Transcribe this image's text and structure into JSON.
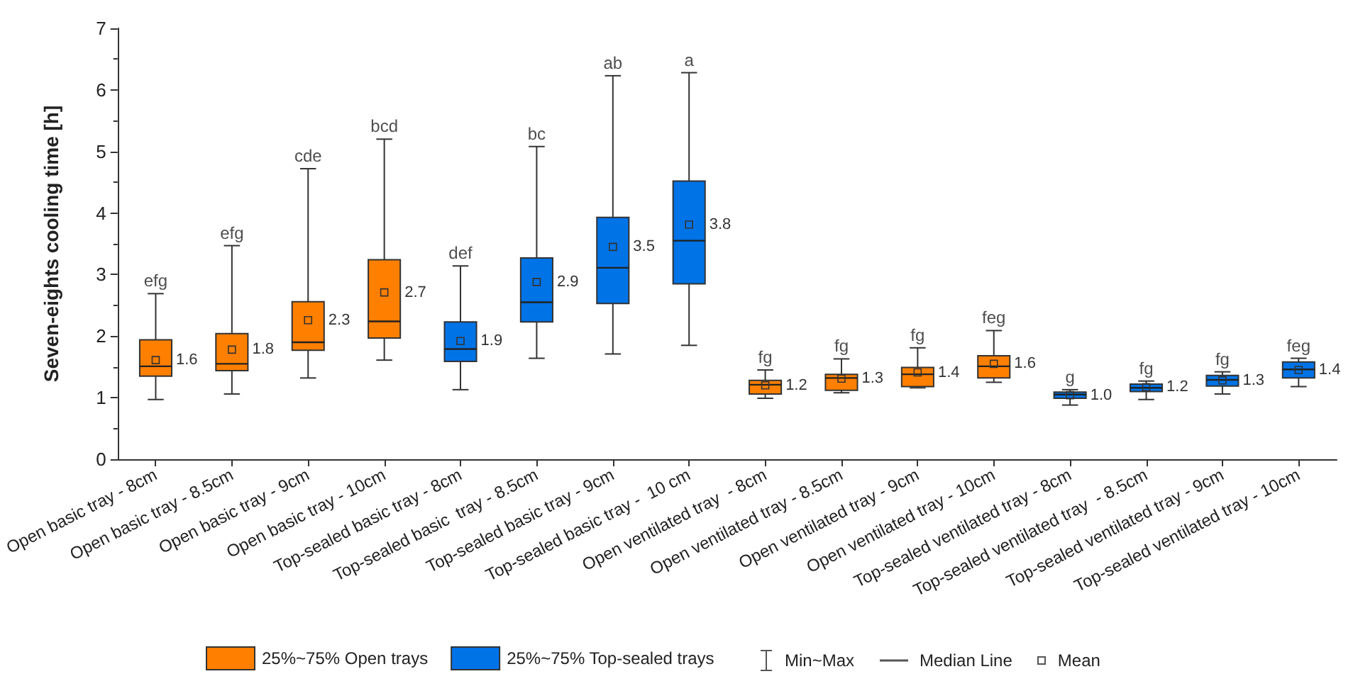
{
  "chart_data": {
    "type": "box",
    "ylabel": "Seven-eights cooling time [h]",
    "categories": [
      "Open basic tray - 8cm",
      "Open basic tray - 8.5cm",
      "Open basic tray - 9cm",
      "Open basic tray - 10cm",
      "Top-sealed basic tray - 8cm",
      "Top-sealed basic  tray - 8.5cm",
      "Top-sealed basic tray - 9cm",
      "Top-sealed basic tray -  10 cm",
      "Open ventilated tray  - 8cm",
      "Open ventilated tray - 8.5cm",
      "Open ventilated tray - 9cm",
      "Open ventilated tray - 10cm",
      "Top-sealed ventilated tray - 8cm",
      "Top-sealed ventilated tray  - 8.5cm",
      "Top-sealed ventilated tray - 9cm",
      "Top-sealed ventilated tray - 10cm"
    ],
    "ylim": [
      0,
      7
    ],
    "yticks": [
      0,
      1,
      2,
      3,
      4,
      5,
      6,
      7
    ],
    "grid": false,
    "legend": "bottom",
    "series": [
      {
        "name": "25%~75% Open trays",
        "color": "#ff7f00",
        "value_labels": [
          "1.6",
          "1.8",
          "2.3",
          "2.7",
          null,
          null,
          null,
          null,
          "1.2",
          "1.3",
          "1.4",
          "1.6",
          null,
          null,
          null,
          null
        ],
        "boxes": [
          {
            "low": 0.97,
            "q1": 1.35,
            "median": 1.51,
            "q3": 1.94,
            "high": 2.69,
            "mean": 1.61
          },
          {
            "low": 1.06,
            "q1": 1.44,
            "median": 1.55,
            "q3": 2.04,
            "high": 3.47,
            "mean": 1.78
          },
          {
            "low": 1.32,
            "q1": 1.77,
            "median": 1.9,
            "q3": 2.56,
            "high": 4.72,
            "mean": 2.26
          },
          {
            "low": 1.61,
            "q1": 1.97,
            "median": 2.24,
            "q3": 3.24,
            "high": 5.2,
            "mean": 2.71
          },
          null,
          null,
          null,
          null,
          {
            "low": 0.99,
            "q1": 1.06,
            "median": 1.21,
            "q3": 1.28,
            "high": 1.45,
            "mean": 1.2
          },
          {
            "low": 1.08,
            "q1": 1.12,
            "median": 1.32,
            "q3": 1.38,
            "high": 1.63,
            "mean": 1.31
          },
          {
            "low": 1.16,
            "q1": 1.18,
            "median": 1.38,
            "q3": 1.49,
            "high": 1.81,
            "mean": 1.41
          },
          {
            "low": 1.25,
            "q1": 1.32,
            "median": 1.51,
            "q3": 1.68,
            "high": 2.09,
            "mean": 1.55
          },
          null,
          null,
          null,
          null
        ]
      },
      {
        "name": "25%~75% Top-sealed trays",
        "color": "#0073e6",
        "value_labels": [
          null,
          null,
          null,
          null,
          "1.9",
          "2.9",
          "3.5",
          "3.8",
          null,
          null,
          null,
          null,
          "1.0",
          "1.2",
          "1.3",
          "1.4"
        ],
        "boxes": [
          null,
          null,
          null,
          null,
          {
            "low": 1.13,
            "q1": 1.59,
            "median": 1.79,
            "q3": 2.23,
            "high": 3.14,
            "mean": 1.92
          },
          {
            "low": 1.64,
            "q1": 2.23,
            "median": 2.55,
            "q3": 3.27,
            "high": 5.08,
            "mean": 2.88
          },
          {
            "low": 1.71,
            "q1": 2.53,
            "median": 3.11,
            "q3": 3.93,
            "high": 6.23,
            "mean": 3.45
          },
          {
            "low": 1.85,
            "q1": 2.85,
            "median": 3.55,
            "q3": 4.52,
            "high": 6.28,
            "mean": 3.81
          },
          null,
          null,
          null,
          null,
          {
            "low": 0.88,
            "q1": 0.99,
            "median": 1.05,
            "q3": 1.09,
            "high": 1.13,
            "mean": 1.04
          },
          {
            "low": 0.97,
            "q1": 1.1,
            "median": 1.16,
            "q3": 1.22,
            "high": 1.27,
            "mean": 1.17
          },
          {
            "low": 1.06,
            "q1": 1.19,
            "median": 1.29,
            "q3": 1.36,
            "high": 1.42,
            "mean": 1.28
          },
          {
            "low": 1.18,
            "q1": 1.32,
            "median": 1.46,
            "q3": 1.58,
            "high": 1.64,
            "mean": 1.45
          }
        ]
      }
    ],
    "annotations": [
      "Min~Max",
      "Median Line",
      "Mean",
      {
        "text": "efg",
        "x": "Open basic tray - 8cm",
        "y": 2.69
      },
      {
        "text": "efg",
        "x": "Open basic tray - 8.5cm",
        "y": 3.47
      },
      {
        "text": "cde",
        "x": "Open basic tray - 9cm",
        "y": 4.72
      },
      {
        "text": "bcd",
        "x": "Open basic tray - 10cm",
        "y": 5.2
      },
      {
        "text": "def",
        "x": "Top-sealed basic tray - 8cm",
        "y": 3.14
      },
      {
        "text": "bc",
        "x": "Top-sealed basic  tray - 8.5cm",
        "y": 5.08
      },
      {
        "text": "ab",
        "x": "Top-sealed basic tray - 9cm",
        "y": 6.23
      },
      {
        "text": "a",
        "x": "Top-sealed basic tray -  10 cm",
        "y": 6.28
      },
      {
        "text": "fg",
        "x": "Open ventilated tray  - 8cm",
        "y": 1.45
      },
      {
        "text": "fg",
        "x": "Open ventilated tray - 8.5cm",
        "y": 1.63
      },
      {
        "text": "fg",
        "x": "Open ventilated tray - 9cm",
        "y": 1.81
      },
      {
        "text": "feg",
        "x": "Open ventilated tray - 10cm",
        "y": 2.09
      },
      {
        "text": "g",
        "x": "Top-sealed ventilated tray - 8cm",
        "y": 1.13
      },
      {
        "text": "fg",
        "x": "Top-sealed ventilated tray  - 8.5cm",
        "y": 1.27
      },
      {
        "text": "fg",
        "x": "Top-sealed ventilated tray - 9cm",
        "y": 1.42
      },
      {
        "text": "feg",
        "x": "Top-sealed ventilated tray - 10cm",
        "y": 1.64
      }
    ]
  }
}
